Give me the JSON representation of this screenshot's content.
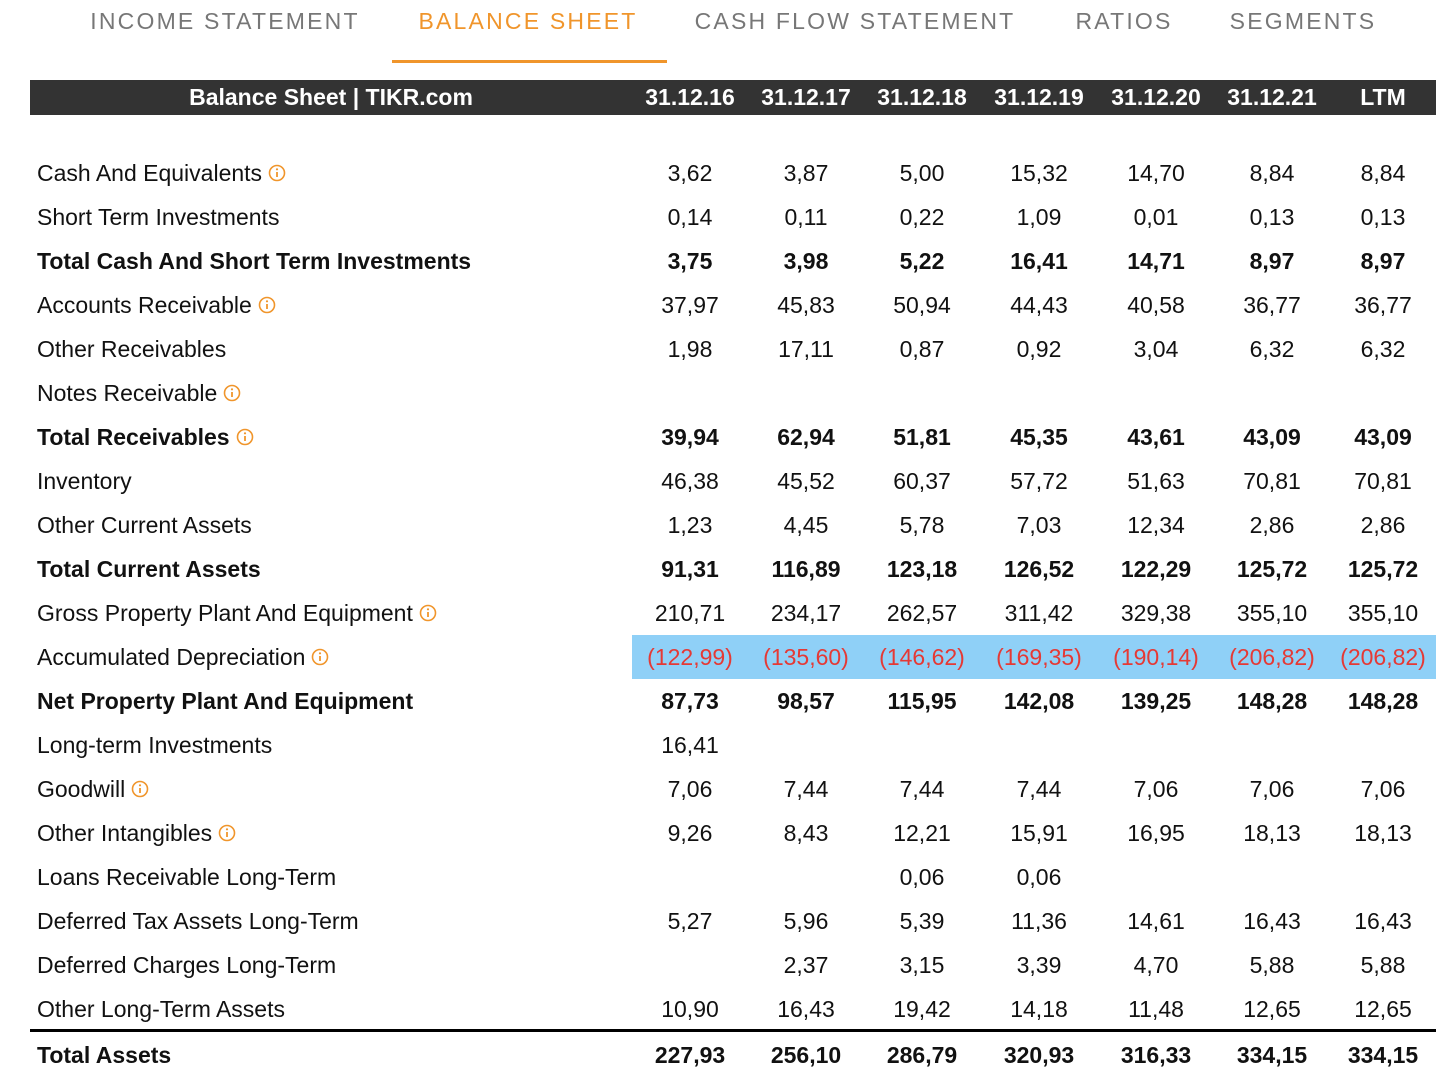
{
  "tabs": [
    "INCOME STATEMENT",
    "BALANCE SHEET",
    "CASH FLOW STATEMENT",
    "RATIOS",
    "SEGMENTS"
  ],
  "active_tab": 1,
  "table": {
    "title": "Balance Sheet | TIKR.com",
    "columns": [
      "31.12.16",
      "31.12.17",
      "31.12.18",
      "31.12.19",
      "31.12.20",
      "31.12.21",
      "LTM"
    ],
    "rows": [
      {
        "label": "Cash And Equivalents",
        "info": true,
        "values": [
          "3,62",
          "3,87",
          "5,00",
          "15,32",
          "14,70",
          "8,84",
          "8,84"
        ]
      },
      {
        "label": "Short Term Investments",
        "values": [
          "0,14",
          "0,11",
          "0,22",
          "1,09",
          "0,01",
          "0,13",
          "0,13"
        ]
      },
      {
        "label": "Total Cash And Short Term Investments",
        "bold": true,
        "values": [
          "3,75",
          "3,98",
          "5,22",
          "16,41",
          "14,71",
          "8,97",
          "8,97"
        ]
      },
      {
        "label": "Accounts Receivable",
        "info": true,
        "values": [
          "37,97",
          "45,83",
          "50,94",
          "44,43",
          "40,58",
          "36,77",
          "36,77"
        ]
      },
      {
        "label": "Other Receivables",
        "values": [
          "1,98",
          "17,11",
          "0,87",
          "0,92",
          "3,04",
          "6,32",
          "6,32"
        ]
      },
      {
        "label": "Notes Receivable",
        "info": true,
        "values": [
          null,
          null,
          null,
          null,
          null,
          null,
          null
        ]
      },
      {
        "label": "Total Receivables",
        "bold": true,
        "info": true,
        "values": [
          "39,94",
          "62,94",
          "51,81",
          "45,35",
          "43,61",
          "43,09",
          "43,09"
        ]
      },
      {
        "label": "Inventory",
        "values": [
          "46,38",
          "45,52",
          "60,37",
          "57,72",
          "51,63",
          "70,81",
          "70,81"
        ]
      },
      {
        "label": "Other Current Assets",
        "values": [
          "1,23",
          "4,45",
          "5,78",
          "7,03",
          "12,34",
          "2,86",
          "2,86"
        ]
      },
      {
        "label": "Total Current Assets",
        "bold": true,
        "values": [
          "91,31",
          "116,89",
          "123,18",
          "126,52",
          "122,29",
          "125,72",
          "125,72"
        ]
      },
      {
        "label": "Gross Property Plant And Equipment",
        "info": true,
        "values": [
          "210,71",
          "234,17",
          "262,57",
          "311,42",
          "329,38",
          "355,10",
          "355,10"
        ]
      },
      {
        "label": "Accumulated Depreciation",
        "info": true,
        "highlight": true,
        "values": [
          "(122,99)",
          "(135,60)",
          "(146,62)",
          "(169,35)",
          "(190,14)",
          "(206,82)",
          "(206,82)"
        ]
      },
      {
        "label": "Net Property Plant And Equipment",
        "bold": true,
        "values": [
          "87,73",
          "98,57",
          "115,95",
          "142,08",
          "139,25",
          "148,28",
          "148,28"
        ]
      },
      {
        "label": "Long-term Investments",
        "values": [
          "16,41",
          null,
          null,
          null,
          null,
          null,
          null
        ]
      },
      {
        "label": "Goodwill",
        "info": true,
        "values": [
          "7,06",
          "7,44",
          "7,44",
          "7,44",
          "7,06",
          "7,06",
          "7,06"
        ]
      },
      {
        "label": "Other Intangibles",
        "info": true,
        "values": [
          "9,26",
          "8,43",
          "12,21",
          "15,91",
          "16,95",
          "18,13",
          "18,13"
        ]
      },
      {
        "label": "Loans Receivable Long-Term",
        "values": [
          null,
          null,
          "0,06",
          "0,06",
          null,
          null,
          null
        ]
      },
      {
        "label": "Deferred Tax Assets Long-Term",
        "values": [
          "5,27",
          "5,96",
          "5,39",
          "11,36",
          "14,61",
          "16,43",
          "16,43"
        ]
      },
      {
        "label": "Deferred Charges Long-Term",
        "values": [
          null,
          "2,37",
          "3,15",
          "3,39",
          "4,70",
          "5,88",
          "5,88"
        ]
      },
      {
        "label": "Other Long-Term Assets",
        "values": [
          "10,90",
          "16,43",
          "19,42",
          "14,18",
          "11,48",
          "12,65",
          "12,65"
        ]
      },
      {
        "label": "Total Assets",
        "bold": true,
        "values": [
          "227,93",
          "256,10",
          "286,79",
          "320,93",
          "316,33",
          "334,15",
          "334,15"
        ]
      }
    ]
  }
}
